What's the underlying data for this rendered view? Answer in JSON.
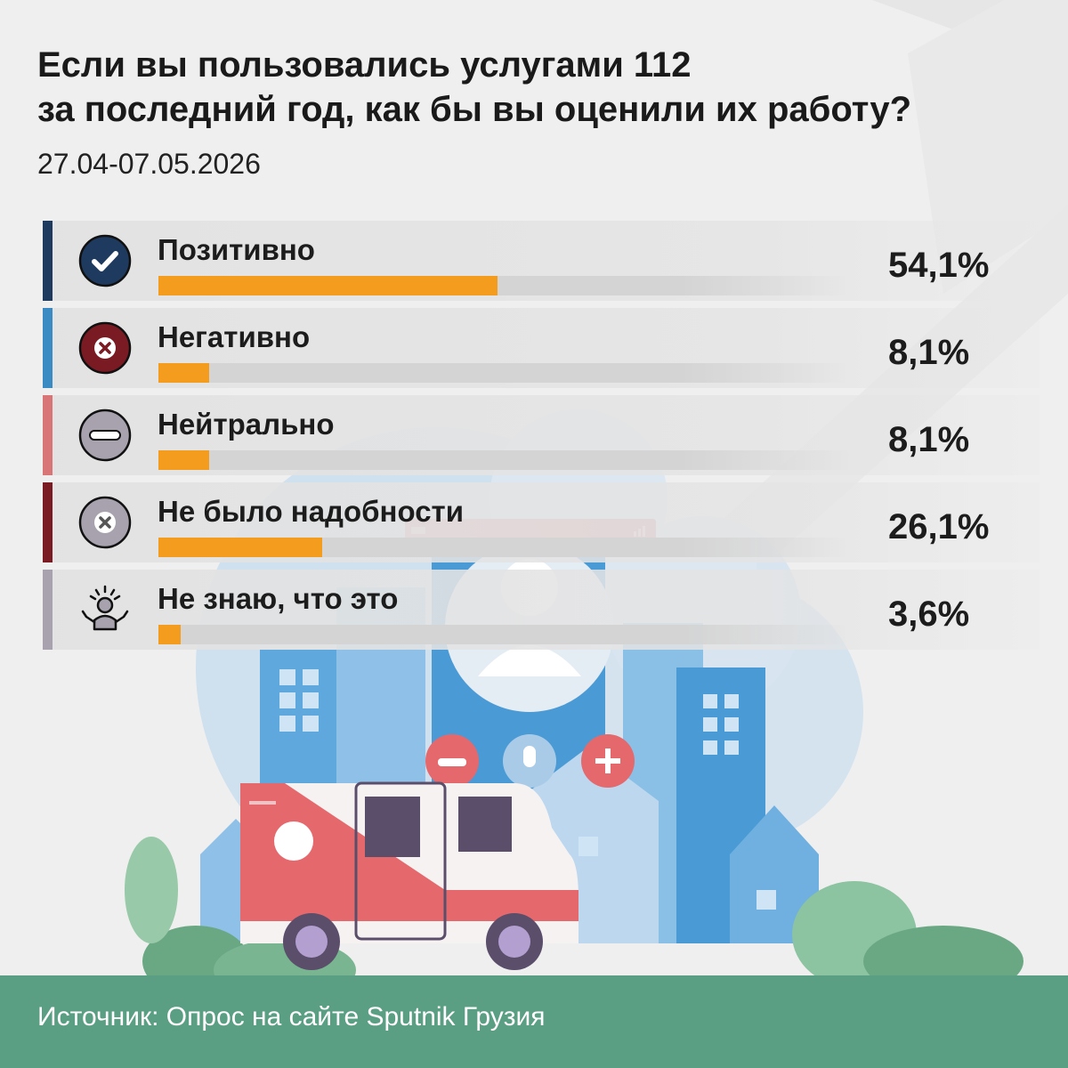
{
  "chart_data": {
    "type": "bar",
    "orientation": "horizontal",
    "title": "Если вы пользовались услугами 112 за последний год, как бы вы оценили их работу?",
    "title_lines": [
      "Если вы пользовались услугами 112",
      "за последний год, как бы вы оценили их работу?"
    ],
    "subtitle": "27.04-07.05.2026",
    "unit": "%",
    "xlim": [
      0,
      100
    ],
    "grid": false,
    "categories": [
      "Позитивно",
      "Негативно",
      "Нейтрально",
      "Не было надобности",
      "Не знаю, что это"
    ],
    "values": [
      54.1,
      8.1,
      8.1,
      26.1,
      3.6
    ],
    "value_labels": [
      "54,1%",
      "8,1%",
      "8,1%",
      "26,1%",
      "3,6%"
    ],
    "icons": [
      "check-circle-icon",
      "x-circle-icon",
      "minus-circle-icon",
      "x-circle-gray-icon",
      "shrug-person-icon"
    ],
    "edge_colors": [
      "#1e3a5f",
      "#3a8ac4",
      "#d77577",
      "#7a1a22",
      "#a7a2ad"
    ],
    "bar_color": "#f39c1e"
  },
  "footer": {
    "source": "Источник: Опрос на сайте Sputnik Грузия"
  },
  "colors": {
    "background": "#efefef",
    "footer": "#5a9f84",
    "text": "#1a1a1a"
  }
}
